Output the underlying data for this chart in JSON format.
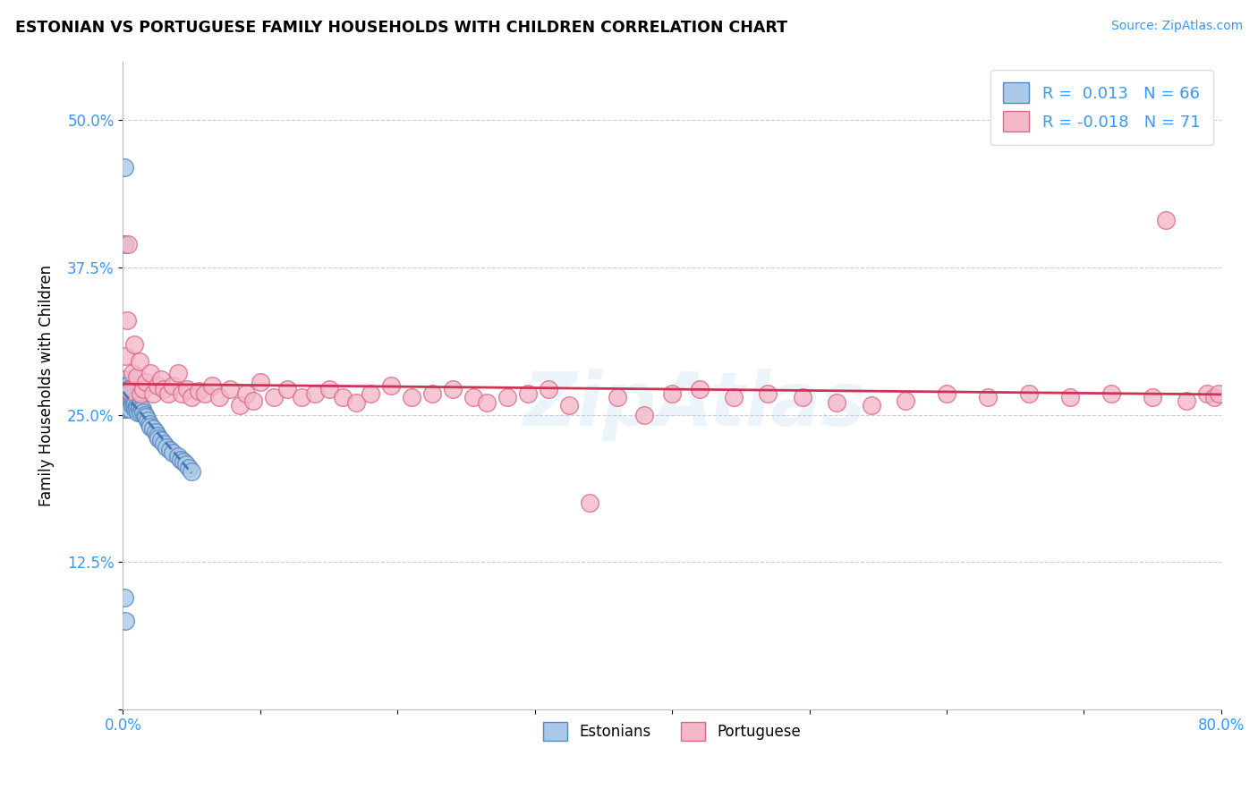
{
  "title": "ESTONIAN VS PORTUGUESE FAMILY HOUSEHOLDS WITH CHILDREN CORRELATION CHART",
  "source": "Source: ZipAtlas.com",
  "ylabel": "Family Households with Children",
  "xlim": [
    0.0,
    0.8
  ],
  "ylim": [
    0.0,
    0.55
  ],
  "xticks": [
    0.0,
    0.1,
    0.2,
    0.3,
    0.4,
    0.5,
    0.6,
    0.7,
    0.8
  ],
  "xticklabels": [
    "0.0%",
    "",
    "",
    "",
    "",
    "",
    "",
    "",
    "80.0%"
  ],
  "yticks": [
    0.0,
    0.125,
    0.25,
    0.375,
    0.5
  ],
  "yticklabels": [
    "",
    "12.5%",
    "25.0%",
    "37.5%",
    "50.0%"
  ],
  "legend_R_blue": "0.013",
  "legend_N_blue": "66",
  "legend_R_pink": "-0.018",
  "legend_N_pink": "71",
  "blue_fill": "#aac8e8",
  "blue_edge": "#5588bb",
  "pink_fill": "#f4b8c8",
  "pink_edge": "#dd6688",
  "trend_blue": "#4477bb",
  "trend_pink": "#cc3355",
  "watermark": "ZipAtlas",
  "blue_x": [
    0.001,
    0.001,
    0.001,
    0.001,
    0.002,
    0.002,
    0.002,
    0.002,
    0.002,
    0.003,
    0.003,
    0.003,
    0.003,
    0.003,
    0.003,
    0.004,
    0.004,
    0.004,
    0.004,
    0.004,
    0.004,
    0.005,
    0.005,
    0.005,
    0.005,
    0.005,
    0.006,
    0.006,
    0.006,
    0.007,
    0.007,
    0.007,
    0.008,
    0.008,
    0.009,
    0.009,
    0.01,
    0.01,
    0.011,
    0.012,
    0.012,
    0.013,
    0.014,
    0.015,
    0.016,
    0.017,
    0.018,
    0.019,
    0.02,
    0.022,
    0.024,
    0.025,
    0.026,
    0.028,
    0.03,
    0.032,
    0.034,
    0.036,
    0.04,
    0.042,
    0.044,
    0.046,
    0.048,
    0.05,
    0.001,
    0.002
  ],
  "blue_y": [
    0.46,
    0.395,
    0.27,
    0.255,
    0.28,
    0.275,
    0.268,
    0.265,
    0.26,
    0.275,
    0.27,
    0.268,
    0.262,
    0.258,
    0.255,
    0.275,
    0.272,
    0.268,
    0.265,
    0.26,
    0.255,
    0.272,
    0.268,
    0.265,
    0.26,
    0.255,
    0.268,
    0.265,
    0.26,
    0.265,
    0.262,
    0.258,
    0.262,
    0.258,
    0.26,
    0.255,
    0.258,
    0.255,
    0.252,
    0.258,
    0.255,
    0.252,
    0.255,
    0.252,
    0.25,
    0.248,
    0.245,
    0.242,
    0.24,
    0.238,
    0.235,
    0.232,
    0.23,
    0.228,
    0.225,
    0.222,
    0.22,
    0.218,
    0.215,
    0.212,
    0.21,
    0.208,
    0.205,
    0.202,
    0.095,
    0.075
  ],
  "pink_x": [
    0.002,
    0.003,
    0.004,
    0.005,
    0.007,
    0.008,
    0.01,
    0.012,
    0.013,
    0.015,
    0.017,
    0.02,
    0.022,
    0.025,
    0.028,
    0.03,
    0.033,
    0.036,
    0.04,
    0.043,
    0.047,
    0.05,
    0.055,
    0.06,
    0.065,
    0.07,
    0.078,
    0.085,
    0.09,
    0.095,
    0.1,
    0.11,
    0.12,
    0.13,
    0.14,
    0.15,
    0.16,
    0.17,
    0.18,
    0.195,
    0.21,
    0.225,
    0.24,
    0.255,
    0.265,
    0.28,
    0.295,
    0.31,
    0.325,
    0.34,
    0.36,
    0.38,
    0.4,
    0.42,
    0.445,
    0.47,
    0.495,
    0.52,
    0.545,
    0.57,
    0.6,
    0.63,
    0.66,
    0.69,
    0.72,
    0.75,
    0.775,
    0.79,
    0.795,
    0.798,
    0.76
  ],
  "pink_y": [
    0.3,
    0.33,
    0.395,
    0.27,
    0.285,
    0.31,
    0.282,
    0.295,
    0.268,
    0.272,
    0.278,
    0.285,
    0.268,
    0.275,
    0.28,
    0.272,
    0.268,
    0.275,
    0.285,
    0.268,
    0.272,
    0.265,
    0.27,
    0.268,
    0.275,
    0.265,
    0.272,
    0.258,
    0.268,
    0.262,
    0.278,
    0.265,
    0.272,
    0.265,
    0.268,
    0.272,
    0.265,
    0.26,
    0.268,
    0.275,
    0.265,
    0.268,
    0.272,
    0.265,
    0.26,
    0.265,
    0.268,
    0.272,
    0.258,
    0.175,
    0.265,
    0.25,
    0.268,
    0.272,
    0.265,
    0.268,
    0.265,
    0.26,
    0.258,
    0.262,
    0.268,
    0.265,
    0.268,
    0.265,
    0.268,
    0.265,
    0.262,
    0.268,
    0.265,
    0.268,
    0.415
  ]
}
